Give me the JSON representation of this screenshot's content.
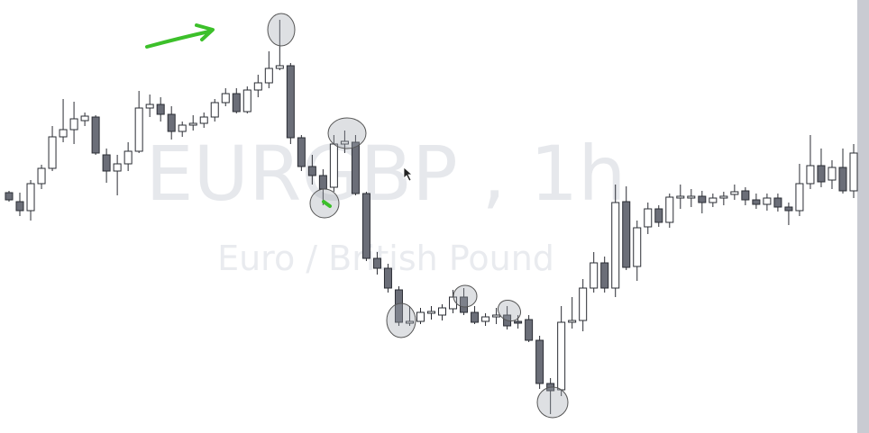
{
  "chart_data": {
    "type": "candlestick",
    "title": "EURGBP , 1h",
    "subtitle": "Euro / British Pound",
    "ylim": [
      0,
      481
    ],
    "up_color": "#ffffff",
    "down_color": "#6b6e78",
    "edge_color": "#2a2c33",
    "open": [
      267,
      257,
      247,
      277,
      294,
      329,
      337,
      347,
      351,
      309,
      291,
      299,
      313,
      361,
      365,
      354,
      335,
      342,
      344,
      351,
      367,
      377,
      357,
      381,
      389,
      405,
      408,
      328,
      296,
      286,
      273,
      321,
      323,
      266,
      194,
      183,
      159,
      122,
      124,
      133,
      131,
      138,
      151,
      134,
      124,
      129,
      131,
      124,
      126,
      103,
      55,
      48,
      123,
      125,
      161,
      189,
      161,
      257,
      185,
      229,
      249,
      234,
      261,
      261,
      263,
      256,
      261,
      265,
      269,
      259,
      254,
      261,
      251,
      247,
      277,
      297,
      281,
      295,
      269
    ],
    "high": [
      269,
      267,
      281,
      298,
      341,
      371,
      368,
      356,
      353,
      316,
      309,
      323,
      380,
      376,
      373,
      363,
      346,
      353,
      356,
      371,
      383,
      383,
      385,
      398,
      424,
      459,
      411,
      331,
      309,
      293,
      331,
      336,
      331,
      268,
      201,
      188,
      163,
      141,
      139,
      141,
      143,
      159,
      161,
      141,
      133,
      139,
      141,
      131,
      131,
      108,
      61,
      141,
      151,
      171,
      201,
      196,
      276,
      274,
      236,
      256,
      253,
      266,
      276,
      271,
      269,
      266,
      268,
      276,
      273,
      266,
      266,
      266,
      256,
      299,
      331,
      316,
      303,
      316,
      321
    ],
    "low": [
      257,
      241,
      236,
      271,
      291,
      323,
      321,
      341,
      309,
      278,
      264,
      291,
      311,
      351,
      346,
      326,
      329,
      336,
      339,
      346,
      363,
      355,
      355,
      373,
      383,
      403,
      321,
      291,
      276,
      253,
      268,
      311,
      264,
      191,
      176,
      156,
      119,
      119,
      121,
      126,
      125,
      133,
      131,
      121,
      119,
      121,
      115,
      116,
      101,
      49,
      21,
      41,
      116,
      113,
      156,
      156,
      151,
      181,
      169,
      221,
      229,
      228,
      249,
      251,
      244,
      251,
      253,
      259,
      253,
      249,
      247,
      246,
      231,
      241,
      271,
      273,
      271,
      266,
      261
    ],
    "close": [
      259,
      247,
      277,
      294,
      329,
      337,
      349,
      352,
      311,
      291,
      299,
      313,
      361,
      365,
      354,
      335,
      342,
      344,
      351,
      367,
      377,
      357,
      381,
      389,
      405,
      408,
      328,
      296,
      286,
      271,
      321,
      324,
      266,
      194,
      183,
      161,
      123,
      124,
      134,
      135,
      139,
      151,
      134,
      123,
      129,
      131,
      119,
      122,
      103,
      55,
      47,
      123,
      125,
      161,
      189,
      161,
      256,
      184,
      228,
      249,
      234,
      262,
      263,
      263,
      256,
      261,
      263,
      268,
      259,
      254,
      261,
      251,
      247,
      277,
      297,
      279,
      295,
      269,
      311
    ]
  }
}
